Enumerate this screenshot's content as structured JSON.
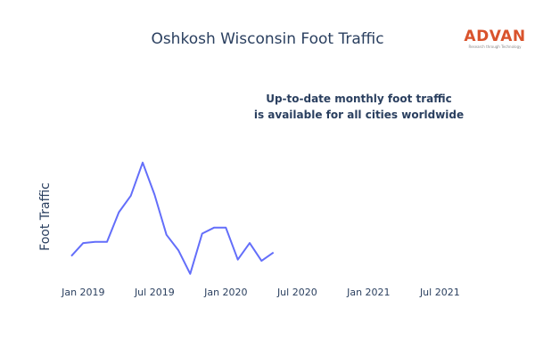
{
  "brand": {
    "name": "ADVAN",
    "tagline": "Research through Technology",
    "color": "#d9532c"
  },
  "annotation": {
    "line1": "Up-to-date monthly foot traffic",
    "line2": "is available for all cities worldwide"
  },
  "chart_data": {
    "type": "line",
    "title": "Oshkosh Wisconsin Foot Traffic",
    "ylabel": "Foot Traffic",
    "xlabel": "",
    "x_ticks": [
      "Jan 2019",
      "Jul 2019",
      "Jan 2020",
      "Jul 2020",
      "Jan 2021",
      "Jul 2021"
    ],
    "xlim": [
      "2018-12",
      "2021-09"
    ],
    "ylim": [
      0,
      100
    ],
    "y_ticks_visible": false,
    "grid": false,
    "line_color": "#636efa",
    "series": [
      {
        "x": [
          "2018-12",
          "2019-01",
          "2019-02",
          "2019-03",
          "2019-04",
          "2019-05",
          "2019-06",
          "2019-07",
          "2019-08",
          "2019-09",
          "2019-10",
          "2019-11",
          "2019-12",
          "2020-01",
          "2020-02",
          "2020-03",
          "2020-04",
          "2020-05"
        ],
        "values": [
          19,
          30,
          31,
          31,
          56,
          70,
          98,
          71,
          37,
          24,
          4,
          38,
          43,
          43,
          16,
          30,
          15,
          22
        ]
      }
    ]
  }
}
